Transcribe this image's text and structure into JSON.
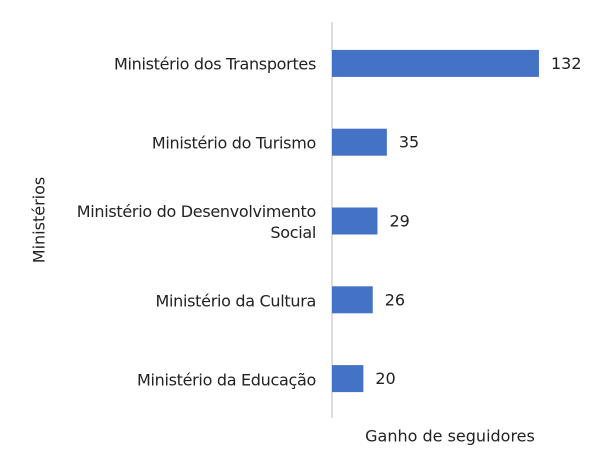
{
  "chart_data": {
    "type": "bar",
    "orientation": "horizontal",
    "categories": [
      "Ministério dos Transportes",
      "Ministério do Turismo",
      "Ministério do Desenvolvimento Social",
      "Ministério da Cultura",
      "Ministério da Educação"
    ],
    "values": [
      132,
      35,
      29,
      26,
      20
    ],
    "color": "#4472c4",
    "xlim": [
      0,
      140
    ],
    "x_label": "Ganho de seguidores",
    "y_label": "Ministérios"
  }
}
